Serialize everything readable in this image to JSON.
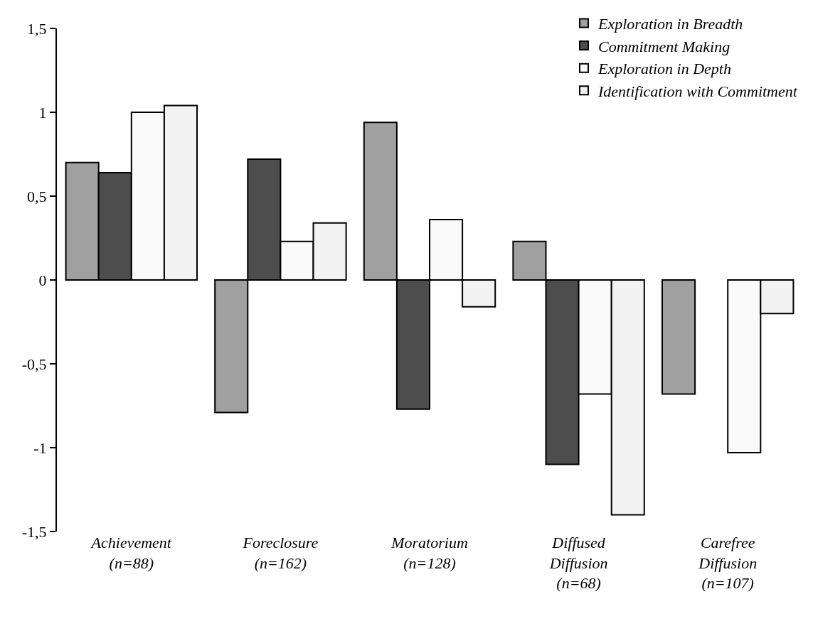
{
  "chart_data": {
    "type": "bar",
    "categories": [
      "Achievement\n(n=88)",
      "Foreclosure\n(n=162)",
      "Moratorium\n(n=128)",
      "Diffused\nDiffusion\n(n=68)",
      "Carefree\nDiffusion\n(n=107)"
    ],
    "series": [
      {
        "name": "Exploration in Breadth",
        "color": "#a0a0a0",
        "values": [
          0.7,
          -0.79,
          0.94,
          0.23,
          -0.68
        ]
      },
      {
        "name": "Commitment Making",
        "color": "#4d4d4d",
        "values": [
          0.64,
          0.72,
          -0.77,
          -1.1,
          null
        ]
      },
      {
        "name": "Exploration in Depth",
        "color": "#fafafa",
        "values": [
          1.0,
          0.23,
          0.36,
          -0.68,
          -1.03
        ]
      },
      {
        "name": "Identification with Commitment",
        "color": "#f2f2f2",
        "values": [
          1.04,
          0.34,
          -0.16,
          -1.4,
          -0.2
        ]
      }
    ],
    "ylim": [
      -1.5,
      1.5
    ],
    "yticks": [
      {
        "value": -1.5,
        "label": "-1,5"
      },
      -1,
      {
        "value": -0.5,
        "label": "-0,5"
      },
      0,
      {
        "value": 0.5,
        "label": "0,5"
      },
      1,
      {
        "value": 1.5,
        "label": "1,5"
      }
    ],
    "grid": false,
    "legend": "top right"
  }
}
